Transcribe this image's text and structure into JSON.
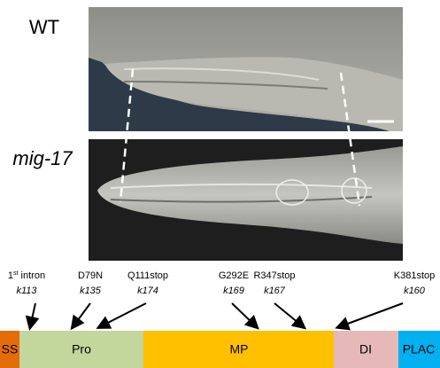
{
  "panel_a": {
    "wt_label": "WT",
    "mutant_label": "mig-17"
  },
  "mutations": [
    {
      "name_base": "1",
      "name_sup": "st",
      "name_rest": " intron",
      "allele": "k113"
    },
    {
      "name": "D79N",
      "allele": "k135"
    },
    {
      "name": "Q111stop",
      "allele": "k174"
    },
    {
      "name": "G292E",
      "allele": "k169"
    },
    {
      "name": "R347stop",
      "allele": "k167"
    },
    {
      "name": "K381stop",
      "allele": "k160"
    }
  ],
  "domains": [
    "SS",
    "Pro",
    "MP",
    "DI",
    "PLAC"
  ]
}
